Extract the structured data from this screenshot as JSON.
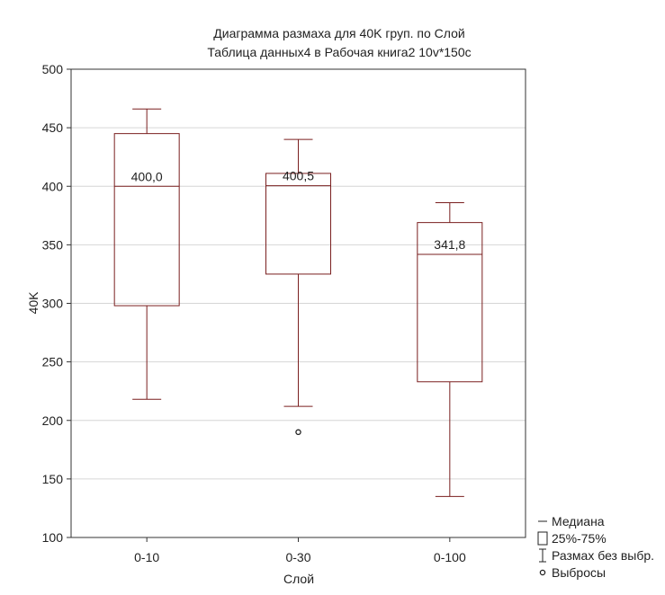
{
  "chart_data": {
    "type": "box",
    "title": "Диаграмма размаха для 40K груп. по Слой",
    "subtitle": "Таблица данных4 в Рабочая книга2 10v*150c",
    "xlabel": "Слой",
    "ylabel": "40K",
    "ylim": [
      100,
      500
    ],
    "yticks": [
      "100",
      "150",
      "200",
      "250",
      "300",
      "350",
      "400",
      "450",
      "500"
    ],
    "grid": true,
    "legend_position": "bottom-right",
    "colors": {
      "box": "#7a1f1f",
      "grid": "#d6d6d6",
      "frame": "#333333"
    },
    "categories": [
      "0-10",
      "0-30",
      "0-100"
    ],
    "boxes": [
      {
        "category": "0-10",
        "whisker_low": 218,
        "q1": 298,
        "median": 400.0,
        "median_label": "400,0",
        "q3": 445,
        "whisker_high": 466,
        "outliers": []
      },
      {
        "category": "0-30",
        "whisker_low": 212,
        "q1": 325,
        "median": 400.5,
        "median_label": "400,5",
        "q3": 411,
        "whisker_high": 440,
        "outliers": [
          190
        ]
      },
      {
        "category": "0-100",
        "whisker_low": 135,
        "q1": 233,
        "median": 341.8,
        "median_label": "341,8",
        "q3": 369,
        "whisker_high": 386,
        "outliers": []
      }
    ],
    "legend": [
      {
        "symbol": "median-line",
        "label": "Медиана"
      },
      {
        "symbol": "box",
        "label": "25%-75%"
      },
      {
        "symbol": "whisker",
        "label": "Размах без выбр."
      },
      {
        "symbol": "outlier",
        "label": "Выбросы"
      }
    ]
  }
}
